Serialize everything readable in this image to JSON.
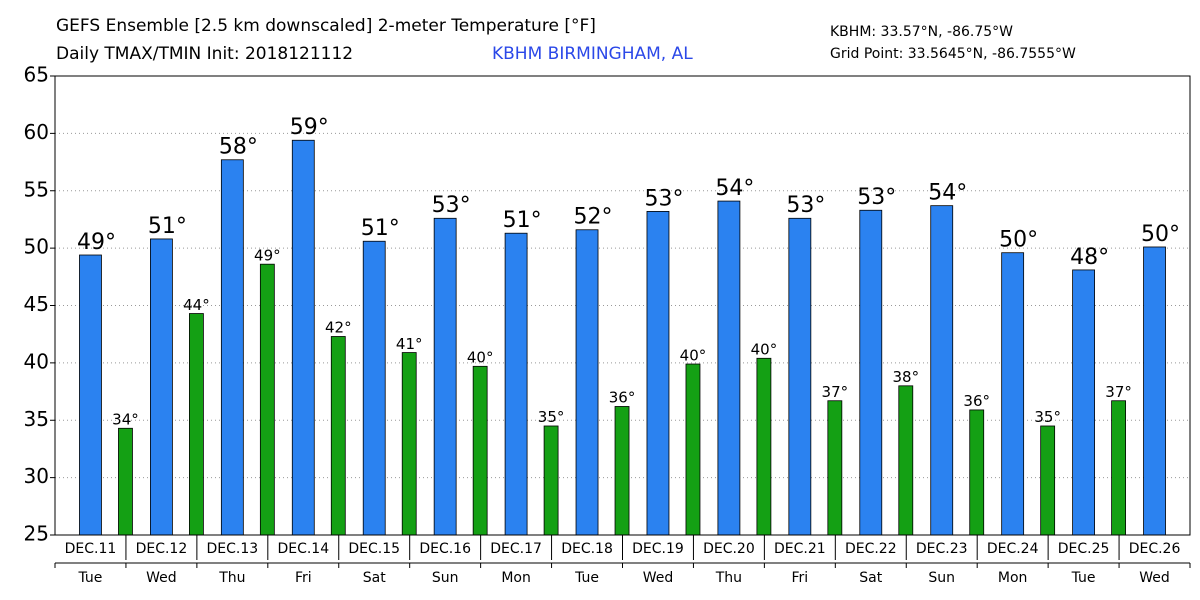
{
  "chart_data": {
    "type": "bar",
    "title": "GEFS Ensemble [2.5 km downscaled] 2-meter Temperature [°F]",
    "subtitle": "Daily TMAX/TMIN Init: 2018121112",
    "station": "KBHM BIRMINGHAM, AL",
    "location": "KBHM: 33.57°N, -86.75°W",
    "grid_point": "Grid Point: 33.5645°N, -86.7555°W",
    "categories": [
      "DEC.11",
      "DEC.12",
      "DEC.13",
      "DEC.14",
      "DEC.15",
      "DEC.16",
      "DEC.17",
      "DEC.18",
      "DEC.19",
      "DEC.20",
      "DEC.21",
      "DEC.22",
      "DEC.23",
      "DEC.24",
      "DEC.25",
      "DEC.26"
    ],
    "weekdays": [
      "Tue",
      "Wed",
      "Thu",
      "Fri",
      "Sat",
      "Sun",
      "Mon",
      "Tue",
      "Wed",
      "Thu",
      "Fri",
      "Sat",
      "Sun",
      "Mon",
      "Tue",
      "Wed"
    ],
    "series": [
      {
        "color": "#2b82f0",
        "values": [
          49.4,
          50.8,
          57.7,
          59.4,
          50.6,
          52.6,
          51.3,
          51.6,
          53.2,
          54.1,
          52.6,
          53.3,
          53.7,
          49.6,
          48.1,
          50.1
        ],
        "value_labels": [
          "49°",
          "51°",
          "58°",
          "59°",
          "51°",
          "53°",
          "51°",
          "52°",
          "53°",
          "54°",
          "53°",
          "53°",
          "54°",
          "50°",
          "48°",
          "50°"
        ]
      },
      {
        "color": "#14a014",
        "values": [
          34.3,
          44.3,
          48.6,
          42.3,
          40.9,
          39.7,
          34.5,
          36.2,
          39.9,
          40.4,
          36.7,
          38.0,
          35.9,
          34.5,
          36.7,
          null
        ],
        "value_labels": [
          "34°",
          "44°",
          "49°",
          "42°",
          "41°",
          "40°",
          "35°",
          "36°",
          "40°",
          "40°",
          "37°",
          "38°",
          "36°",
          "35°",
          "37°",
          null
        ]
      }
    ],
    "ylim": [
      25,
      65
    ],
    "yticks": [
      25,
      30,
      35,
      40,
      45,
      50,
      55,
      60,
      65
    ],
    "grid": true
  }
}
